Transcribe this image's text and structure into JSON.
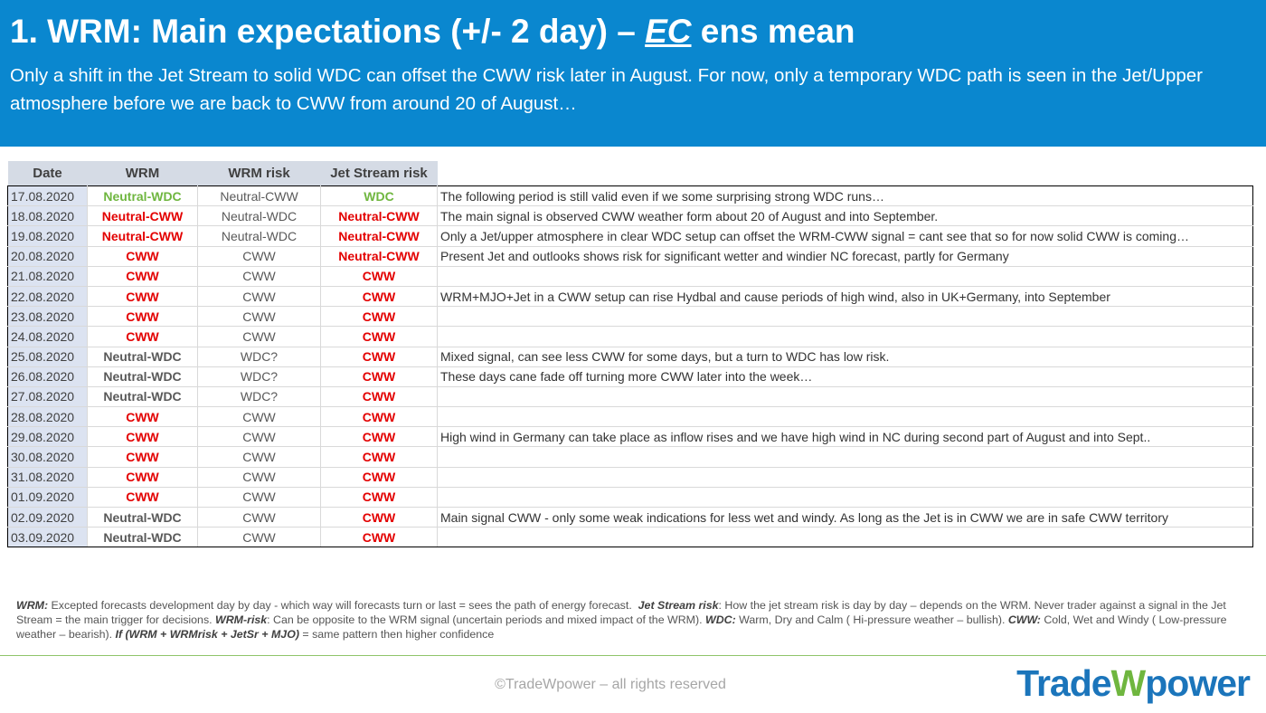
{
  "header": {
    "title_start": "1. WRM: Main expectations (+/- 2 day) – ",
    "title_emph": "EC",
    "title_end": " ens mean",
    "subtitle": "Only a shift in the Jet Stream to solid WDC can offset the CWW risk later in August. For now, only a temporary WDC path is seen in the Jet/Upper atmosphere before we are back to CWW from around 20 of August…"
  },
  "table": {
    "columns": [
      "Date",
      "WRM",
      "WRM risk",
      "Jet Stream risk"
    ],
    "colors": {
      "CWW": "#e30000",
      "Neutral-CWW": "#e30000",
      "WDC": "#6fb63f",
      "Neutral-WDC": "#595959",
      "WDC?": "#595959"
    },
    "groups": [
      {
        "rows": [
          {
            "date": "17.08.2020",
            "wrm": "Neutral-WDC",
            "wrm_color": "#6fb63f",
            "wrm_risk": "Neutral-CWW",
            "jet": "WDC",
            "comment": "The following period is still valid even if we some surprising strong WDC runs…"
          }
        ]
      },
      {
        "rows": [
          {
            "date": "18.08.2020",
            "wrm": "Neutral-CWW",
            "wrm_risk": "Neutral-WDC",
            "jet": "Neutral-CWW",
            "comment": "The main signal is observed CWW weather form about 20 of August and into September."
          },
          {
            "date": "19.08.2020",
            "wrm": "Neutral-CWW",
            "wrm_risk": "Neutral-WDC",
            "jet": "Neutral-CWW",
            "comment": "Only a Jet/upper atmosphere in clear WDC setup can offset the WRM-CWW signal = cant see that so for now solid CWW is coming…"
          },
          {
            "date": "20.08.2020",
            "wrm": "CWW",
            "wrm_risk": "CWW",
            "jet": "Neutral-CWW",
            "comment": "Present Jet and outlooks shows risk for significant wetter and windier NC forecast, partly for Germany"
          },
          {
            "date": "21.08.2020",
            "wrm": "CWW",
            "wrm_risk": "CWW",
            "jet": "CWW"
          },
          {
            "date": "22.08.2020",
            "wrm": "CWW",
            "wrm_risk": "CWW",
            "jet": "CWW",
            "comment": "WRM+MJO+Jet in a CWW setup can rise Hydbal and cause periods of high wind, also in UK+Germany, into September"
          },
          {
            "date": "23.08.2020",
            "wrm": "CWW",
            "wrm_risk": "CWW",
            "jet": "CWW"
          },
          {
            "date": "24.08.2020",
            "wrm": "CWW",
            "wrm_risk": "CWW",
            "jet": "CWW"
          }
        ]
      },
      {
        "rows": [
          {
            "date": "25.08.2020",
            "wrm": "Neutral-WDC",
            "wrm_risk": "WDC?",
            "jet": "CWW",
            "comment": "Mixed signal, can see less CWW for some days, but a turn to WDC has low risk."
          },
          {
            "date": "26.08.2020",
            "wrm": "Neutral-WDC",
            "wrm_risk": "WDC?",
            "jet": "CWW",
            "comment": "These days cane fade off turning more CWW later into the week…"
          },
          {
            "date": "27.08.2020",
            "wrm": "Neutral-WDC",
            "wrm_risk": "WDC?",
            "jet": "CWW"
          }
        ]
      },
      {
        "rows": [
          {
            "date": "28.08.2020",
            "wrm": "CWW",
            "wrm_risk": "CWW",
            "jet": "CWW"
          },
          {
            "date": "29.08.2020",
            "wrm": "CWW",
            "wrm_risk": "CWW",
            "jet": "CWW",
            "comment": "High wind in Germany can take place as inflow rises and we have high wind in NC during second part of August and into Sept.."
          },
          {
            "date": "30.08.2020",
            "wrm": "CWW",
            "wrm_risk": "CWW",
            "jet": "CWW"
          },
          {
            "date": "31.08.2020",
            "wrm": "CWW",
            "wrm_risk": "CWW",
            "jet": "CWW"
          },
          {
            "date": "01.09.2020",
            "wrm": "CWW",
            "wrm_risk": "CWW",
            "jet": "CWW"
          }
        ]
      },
      {
        "rows": [
          {
            "date": "02.09.2020",
            "wrm": "Neutral-WDC",
            "wrm_risk": "CWW",
            "jet": "CWW",
            "comment": "Main signal CWW - only some weak indications for less wet and windy. As long as the Jet is in CWW we are in safe CWW territory"
          },
          {
            "date": "03.09.2020",
            "wrm": "Neutral-WDC",
            "wrm_risk": "CWW",
            "jet": "CWW"
          }
        ]
      }
    ]
  },
  "footer": {
    "notes": [
      {
        "text": "WRM:",
        "bold": true
      },
      {
        "text": " Excepted forecasts development day by day - which way will forecasts turn or last = sees the path of energy forecast.  "
      },
      {
        "text": "Jet Stream risk",
        "bold": true
      },
      {
        "text": ": How the jet stream risk is day by day – depends on the WRM. Never trader against a signal in the Jet Stream = the main trigger for decisions. "
      },
      {
        "text": "WRM-risk",
        "bold": true
      },
      {
        "text": ": Can be opposite to the WRM signal (uncertain periods and mixed impact of the WRM). "
      },
      {
        "text": "WDC:",
        "bold": true
      },
      {
        "text": " Warm, Dry and Calm ( Hi-pressure weather – bullish). "
      },
      {
        "text": "CWW:",
        "bold": true
      },
      {
        "text": " Cold, Wet and Windy ( Low-pressure weather – bearish). "
      },
      {
        "text": "If (WRM + WRMrisk + JetSr + MJO)",
        "bold": true
      },
      {
        "text": " = same pattern then higher confidence"
      }
    ],
    "copyright": "©TradeWpower – all rights reserved",
    "logo_start": "Trade",
    "logo_mid": "W",
    "logo_end": "power"
  }
}
